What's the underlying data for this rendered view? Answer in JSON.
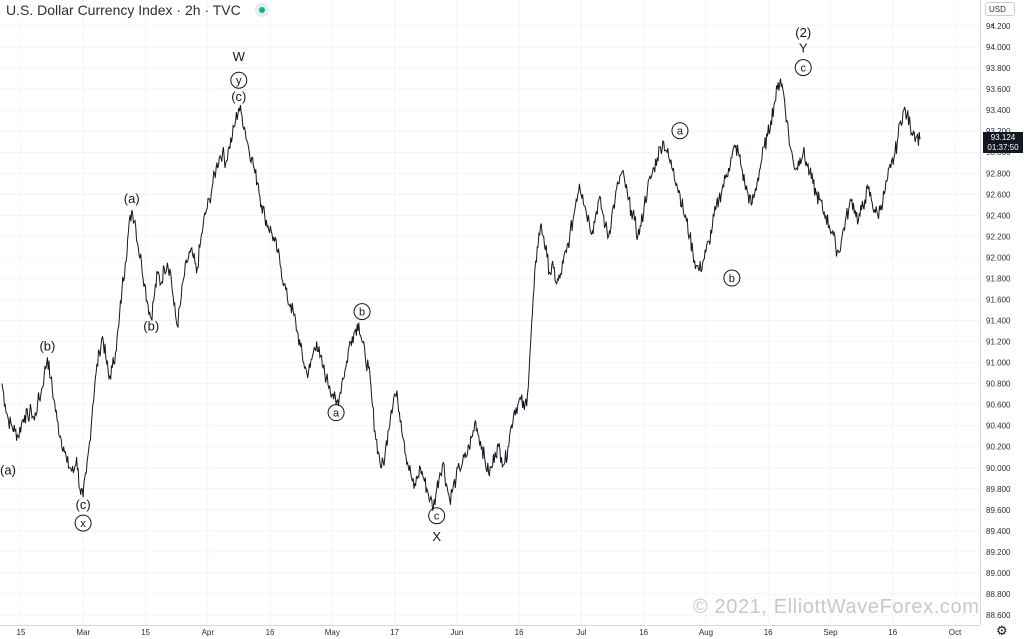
{
  "header": {
    "symbol": "U.S. Dollar Currency Index",
    "interval": "2h",
    "source": "TVC",
    "status_icon": "market-status-dot-icon"
  },
  "price_scale": {
    "currency": "USD",
    "current_price": "93.124",
    "countdown": "01:37:50"
  },
  "watermark": "© 2021, ElliottWaveForex.com",
  "settings_icon": "gear-icon",
  "chart_data": {
    "type": "line",
    "ylim": [
      88.6,
      94.4
    ],
    "y_ticks": [
      "94.200",
      "94.000",
      "93.800",
      "93.600",
      "93.400",
      "93.200",
      "93.000",
      "92.800",
      "92.600",
      "92.400",
      "92.200",
      "92.000",
      "91.800",
      "91.600",
      "91.400",
      "91.200",
      "91.000",
      "90.800",
      "90.600",
      "90.400",
      "90.200",
      "90.000",
      "89.800",
      "89.600",
      "89.400",
      "89.200",
      "89.000",
      "88.800",
      "88.600"
    ],
    "x_ticks": [
      "15",
      "Mar",
      "15",
      "Apr",
      "16",
      "May",
      "17",
      "Jun",
      "16",
      "Jul",
      "16",
      "Aug",
      "16",
      "Sep",
      "16",
      "Oct"
    ],
    "series": [
      {
        "values": [
          90.8,
          90.6,
          90.45,
          90.4,
          90.35,
          90.3,
          90.42,
          90.5,
          90.48,
          90.55,
          90.45,
          90.62,
          90.7,
          90.88,
          91.05,
          90.85,
          90.65,
          90.45,
          90.3,
          90.2,
          90.05,
          90.0,
          89.95,
          90.1,
          89.8,
          89.72,
          89.95,
          90.25,
          90.6,
          90.9,
          91.1,
          91.25,
          91.05,
          90.85,
          90.95,
          91.1,
          91.35,
          91.7,
          91.95,
          92.25,
          92.45,
          92.35,
          92.1,
          91.95,
          91.75,
          91.55,
          91.42,
          91.65,
          91.85,
          91.75,
          91.9,
          91.95,
          91.85,
          91.55,
          91.35,
          91.55,
          91.8,
          91.95,
          92.05,
          92.0,
          91.85,
          92.1,
          92.3,
          92.45,
          92.55,
          92.7,
          92.85,
          92.95,
          93.0,
          92.9,
          93.05,
          93.15,
          93.3,
          93.42,
          93.35,
          93.2,
          93.05,
          92.95,
          92.8,
          92.7,
          92.5,
          92.4,
          92.3,
          92.25,
          92.15,
          92.05,
          91.9,
          91.75,
          91.6,
          91.55,
          91.45,
          91.3,
          91.15,
          91.0,
          90.9,
          90.95,
          91.1,
          91.2,
          91.05,
          90.95,
          90.85,
          90.78,
          90.7,
          90.6,
          90.68,
          90.85,
          90.95,
          91.15,
          91.25,
          91.32,
          91.38,
          91.2,
          91.05,
          90.95,
          90.65,
          90.35,
          90.15,
          90.0,
          90.1,
          90.35,
          90.55,
          90.7,
          90.65,
          90.45,
          90.25,
          90.05,
          89.95,
          89.8,
          89.9,
          90.0,
          89.9,
          89.8,
          89.7,
          89.62,
          89.8,
          89.95,
          90.05,
          89.85,
          89.7,
          89.8,
          89.9,
          90.0,
          90.05,
          90.1,
          90.2,
          90.3,
          90.45,
          90.3,
          90.2,
          90.05,
          89.95,
          90.0,
          90.15,
          90.2,
          90.1,
          90.05,
          90.2,
          90.4,
          90.55,
          90.6,
          90.65,
          90.55,
          90.7,
          91.2,
          91.7,
          92.1,
          92.3,
          92.2,
          92.0,
          91.85,
          91.9,
          91.75,
          91.8,
          91.95,
          92.05,
          92.2,
          92.35,
          92.55,
          92.7,
          92.6,
          92.45,
          92.35,
          92.25,
          92.4,
          92.55,
          92.45,
          92.3,
          92.2,
          92.4,
          92.55,
          92.7,
          92.8,
          92.72,
          92.55,
          92.45,
          92.35,
          92.2,
          92.3,
          92.5,
          92.65,
          92.75,
          92.85,
          92.95,
          93.05,
          93.1,
          93.0,
          92.9,
          92.85,
          92.7,
          92.6,
          92.45,
          92.35,
          92.2,
          92.05,
          91.92,
          91.88,
          91.95,
          92.05,
          92.15,
          92.3,
          92.45,
          92.55,
          92.65,
          92.75,
          92.85,
          92.95,
          93.05,
          93.0,
          92.85,
          92.7,
          92.6,
          92.5,
          92.6,
          92.75,
          92.9,
          93.05,
          93.15,
          93.3,
          93.45,
          93.6,
          93.7,
          93.55,
          93.3,
          93.05,
          92.9,
          92.85,
          92.95,
          93.0,
          92.9,
          92.8,
          92.7,
          92.6,
          92.55,
          92.45,
          92.4,
          92.3,
          92.25,
          92.1,
          92.05,
          92.2,
          92.35,
          92.45,
          92.55,
          92.45,
          92.35,
          92.45,
          92.55,
          92.65,
          92.55,
          92.45,
          92.4,
          92.5,
          92.6,
          92.75,
          92.85,
          92.95,
          93.1,
          93.3,
          93.4,
          93.35,
          93.25,
          93.2,
          93.15,
          93.124
        ]
      }
    ],
    "wave_labels": [
      {
        "text": "(a)",
        "idx": 0,
        "price": 90.05,
        "pos": "below"
      },
      {
        "text": "(b)",
        "idx": 14,
        "price": 91.05,
        "pos": "above"
      },
      {
        "text": "(c)",
        "idx": 25,
        "price": 89.72,
        "pos": "below"
      },
      {
        "text": "x",
        "idx": 25,
        "price": 89.55,
        "pos": "below",
        "circled": true
      },
      {
        "text": "(a)",
        "idx": 40,
        "price": 92.45,
        "pos": "above"
      },
      {
        "text": "(b)",
        "idx": 46,
        "price": 91.42,
        "pos": "below"
      },
      {
        "text": "(c)",
        "idx": 73,
        "price": 93.42,
        "pos": "above"
      },
      {
        "text": "y",
        "idx": 73,
        "price": 93.58,
        "pos": "above",
        "circled": true
      },
      {
        "text": "W",
        "idx": 73,
        "price": 93.8,
        "pos": "above"
      },
      {
        "text": "a",
        "idx": 103,
        "price": 90.6,
        "pos": "below",
        "circled": true
      },
      {
        "text": "b",
        "idx": 111,
        "price": 91.38,
        "pos": "above",
        "circled": true
      },
      {
        "text": "c",
        "idx": 134,
        "price": 89.62,
        "pos": "below",
        "circled": true
      },
      {
        "text": "X",
        "idx": 134,
        "price": 89.42,
        "pos": "below"
      },
      {
        "text": "a",
        "idx": 209,
        "price": 93.1,
        "pos": "above",
        "circled": true
      },
      {
        "text": "b",
        "idx": 225,
        "price": 91.88,
        "pos": "below",
        "circled": true
      },
      {
        "text": "c",
        "idx": 247,
        "price": 93.7,
        "pos": "above",
        "circled": true
      },
      {
        "text": "Y",
        "idx": 247,
        "price": 93.88,
        "pos": "above"
      },
      {
        "text": "(2)",
        "idx": 247,
        "price": 94.03,
        "pos": "above"
      }
    ]
  }
}
